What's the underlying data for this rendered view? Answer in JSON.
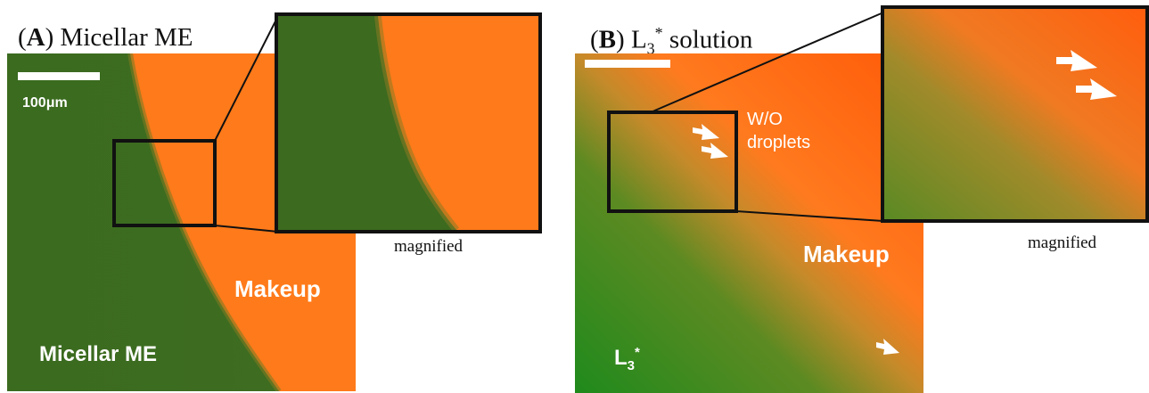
{
  "panel_a": {
    "title_letter": "A",
    "title_text": "Micellar ME",
    "scale_label": "100μm",
    "label_bottom": "Micellar ME",
    "label_right": "Makeup",
    "inset_caption": "magnified",
    "colors": {
      "dark_green": "#3b6a1e",
      "orange": "#ff7a1a"
    }
  },
  "panel_b": {
    "title_letter": "B",
    "title_text": "L",
    "title_sub": "3",
    "title_sup": "*",
    "title_tail": "solution",
    "droplets_line1": "W/O",
    "droplets_line2": "droplets",
    "label_right": "Makeup",
    "label_bottom_main": "L",
    "label_bottom_sub": "3",
    "label_bottom_sup": "*",
    "inset_caption": "magnified",
    "colors": {
      "green": "#2f8a20",
      "orange": "#ff6a10"
    }
  }
}
